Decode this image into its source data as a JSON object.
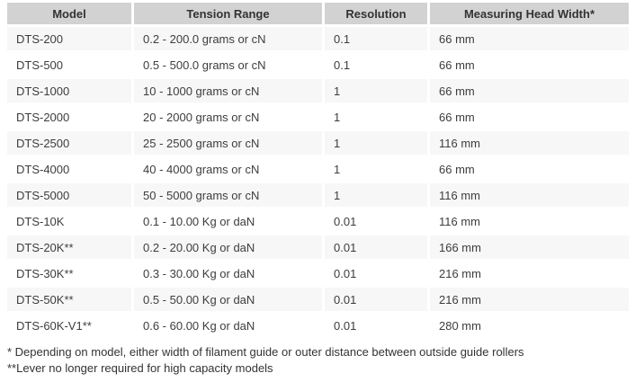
{
  "chart_data": {
    "type": "table",
    "title": "",
    "columns": [
      "Model",
      "Tension Range",
      "Resolution",
      "Measuring Head Width*"
    ],
    "rows": [
      [
        "DTS-200",
        "0.2 - 200.0 grams or cN",
        "0.1",
        "66 mm"
      ],
      [
        "DTS-500",
        "0.5 - 500.0 grams or cN",
        "0.1",
        "66 mm"
      ],
      [
        "DTS-1000",
        "10 - 1000 grams or cN",
        "1",
        "66 mm"
      ],
      [
        "DTS-2000",
        "20 - 2000 grams or cN",
        "1",
        "66 mm"
      ],
      [
        "DTS-2500",
        "25 - 2500 grams or cN",
        "1",
        "116 mm"
      ],
      [
        "DTS-4000",
        "40 - 4000 grams or cN",
        "1",
        "66 mm"
      ],
      [
        "DTS-5000",
        "50 - 5000 grams or cN",
        "1",
        "116 mm"
      ],
      [
        "DTS-10K",
        "0.1 - 10.00 Kg or daN",
        "0.01",
        "116 mm"
      ],
      [
        "DTS-20K**",
        "0.2 - 20.00 Kg or daN",
        "0.01",
        "166 mm"
      ],
      [
        "DTS-30K**",
        "0.3 - 30.00 Kg or daN",
        "0.01",
        "216 mm"
      ],
      [
        "DTS-50K**",
        "0.5 - 50.00 Kg or daN",
        "0.01",
        "216 mm"
      ],
      [
        "DTS-60K-V1**",
        "0.6 - 60.00 Kg or daN",
        "0.01",
        "280 mm"
      ]
    ],
    "annotations": [
      "* Depending on model, either width of filament guide or outer distance between outside guide rollers",
      "**Lever no longer required for high capacity models"
    ],
    "layout": {
      "header_background": "#d2d2d2",
      "alternate_row_background": "#f7f7f7",
      "alternating_rows": "odd rows shaded starting with first body row",
      "header_alignment": "center",
      "body_alignment": "left"
    }
  },
  "table": {
    "header": {
      "model": "Model",
      "tension": "Tension Range",
      "resolution": "Resolution",
      "head_width": "Measuring Head Width*"
    },
    "rows": [
      {
        "model": "DTS-200",
        "tension": "0.2 - 200.0 grams or cN",
        "resolution": "0.1",
        "head_width": "66 mm"
      },
      {
        "model": "DTS-500",
        "tension": "0.5 - 500.0 grams or cN",
        "resolution": "0.1",
        "head_width": "66 mm"
      },
      {
        "model": "DTS-1000",
        "tension": "10 - 1000 grams or cN",
        "resolution": "1",
        "head_width": "66 mm"
      },
      {
        "model": "DTS-2000",
        "tension": "20 - 2000 grams or cN",
        "resolution": "1",
        "head_width": "66 mm"
      },
      {
        "model": "DTS-2500",
        "tension": "25 - 2500 grams or cN",
        "resolution": "1",
        "head_width": "116 mm"
      },
      {
        "model": "DTS-4000",
        "tension": "40 - 4000 grams or cN",
        "resolution": "1",
        "head_width": "66 mm"
      },
      {
        "model": "DTS-5000",
        "tension": "50 - 5000 grams or cN",
        "resolution": "1",
        "head_width": "116 mm"
      },
      {
        "model": "DTS-10K",
        "tension": "0.1 - 10.00 Kg or daN",
        "resolution": "0.01",
        "head_width": "116 mm"
      },
      {
        "model": "DTS-20K**",
        "tension": "0.2 - 20.00 Kg or daN",
        "resolution": "0.01",
        "head_width": "166 mm"
      },
      {
        "model": "DTS-30K**",
        "tension": "0.3 - 30.00 Kg or daN",
        "resolution": "0.01",
        "head_width": "216 mm"
      },
      {
        "model": "DTS-50K**",
        "tension": "0.5 - 50.00 Kg or daN",
        "resolution": "0.01",
        "head_width": "216 mm"
      },
      {
        "model": "DTS-60K-V1**",
        "tension": "0.6 - 60.00 Kg or daN",
        "resolution": "0.01",
        "head_width": "280 mm"
      }
    ]
  },
  "footnotes": {
    "line1": "* Depending on model, either width of filament guide or outer distance between outside guide rollers",
    "line2": "**Lever no longer required for high capacity models"
  },
  "colors": {
    "header_bg": "#d2d2d2",
    "alt_row_bg": "#f7f7f7",
    "body_text": "#3d3d3d",
    "header_text": "#333333",
    "page_bg": "#ffffff"
  }
}
